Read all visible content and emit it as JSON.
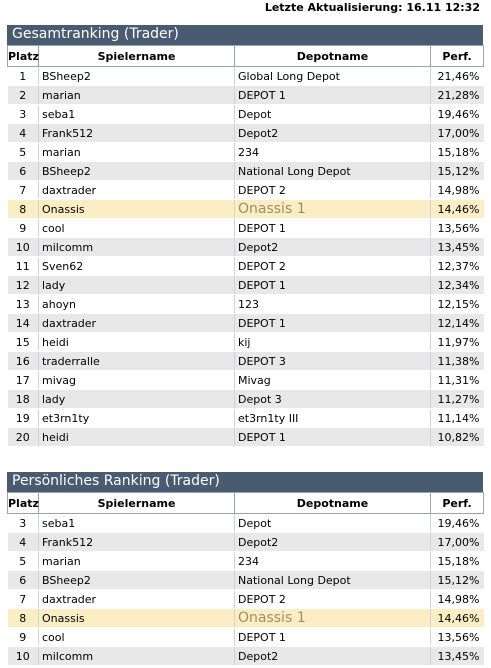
{
  "last_update": "Letzte Aktualisierung: 16.11 12:32",
  "global_ranking": {
    "title": "Gesamtranking (Trader)",
    "columns": [
      "Platz",
      "Spielername",
      "Depotname",
      "Perf."
    ],
    "highlight_platz": "8",
    "rows": [
      {
        "platz": "1",
        "spieler": "BSheep2",
        "depot": "Global Long Depot",
        "perf": "21,46%"
      },
      {
        "platz": "2",
        "spieler": "marian",
        "depot": "DEPOT 1",
        "perf": "21,28%"
      },
      {
        "platz": "3",
        "spieler": "seba1",
        "depot": "Depot",
        "perf": "19,46%"
      },
      {
        "platz": "4",
        "spieler": "Frank512",
        "depot": "Depot2",
        "perf": "17,00%"
      },
      {
        "platz": "5",
        "spieler": "marian",
        "depot": "234",
        "perf": "15,18%"
      },
      {
        "platz": "6",
        "spieler": "BSheep2",
        "depot": "National Long Depot",
        "perf": "15,12%"
      },
      {
        "platz": "7",
        "spieler": "daxtrader",
        "depot": "DEPOT 2",
        "perf": "14,98%"
      },
      {
        "platz": "8",
        "spieler": "Onassis",
        "depot": "Onassis 1",
        "perf": "14,46%"
      },
      {
        "platz": "9",
        "spieler": "cool",
        "depot": "DEPOT 1",
        "perf": "13,56%"
      },
      {
        "platz": "10",
        "spieler": "milcomm",
        "depot": "Depot2",
        "perf": "13,45%"
      },
      {
        "platz": "11",
        "spieler": "Sven62",
        "depot": "DEPOT 2",
        "perf": "12,37%"
      },
      {
        "platz": "12",
        "spieler": "lady",
        "depot": "DEPOT 1",
        "perf": "12,34%"
      },
      {
        "platz": "13",
        "spieler": "ahoyn",
        "depot": "123",
        "perf": "12,15%"
      },
      {
        "platz": "14",
        "spieler": "daxtrader",
        "depot": "DEPOT 1",
        "perf": "12,14%"
      },
      {
        "platz": "15",
        "spieler": "heidi",
        "depot": "kij",
        "perf": "11,97%"
      },
      {
        "platz": "16",
        "spieler": "traderralle",
        "depot": "DEPOT 3",
        "perf": "11,38%"
      },
      {
        "platz": "17",
        "spieler": "mivag",
        "depot": "Mivag",
        "perf": "11,31%"
      },
      {
        "platz": "18",
        "spieler": "lady",
        "depot": "Depot 3",
        "perf": "11,27%"
      },
      {
        "platz": "19",
        "spieler": "et3rn1ty",
        "depot": "et3rn1ty III",
        "perf": "11,14%"
      },
      {
        "platz": "20",
        "spieler": "heidi",
        "depot": "DEPOT 1",
        "perf": "10,82%"
      }
    ]
  },
  "personal_ranking": {
    "title": "Persönliches Ranking (Trader)",
    "columns": [
      "Platz",
      "Spielername",
      "Depotname",
      "Perf."
    ],
    "highlight_platz": "8",
    "rows": [
      {
        "platz": "3",
        "spieler": "seba1",
        "depot": "Depot",
        "perf": "19,46%"
      },
      {
        "platz": "4",
        "spieler": "Frank512",
        "depot": "Depot2",
        "perf": "17,00%"
      },
      {
        "platz": "5",
        "spieler": "marian",
        "depot": "234",
        "perf": "15,18%"
      },
      {
        "platz": "6",
        "spieler": "BSheep2",
        "depot": "National Long Depot",
        "perf": "15,12%"
      },
      {
        "platz": "7",
        "spieler": "daxtrader",
        "depot": "DEPOT 2",
        "perf": "14,98%"
      },
      {
        "platz": "8",
        "spieler": "Onassis",
        "depot": "Onassis 1",
        "perf": "14,46%"
      },
      {
        "platz": "9",
        "spieler": "cool",
        "depot": "DEPOT 1",
        "perf": "13,56%"
      },
      {
        "platz": "10",
        "spieler": "milcomm",
        "depot": "Depot2",
        "perf": "13,45%"
      }
    ]
  },
  "colors": {
    "panel_header": "#485b71",
    "row_alt": "#e8e8e8",
    "row_highlight": "#fbeec4"
  }
}
